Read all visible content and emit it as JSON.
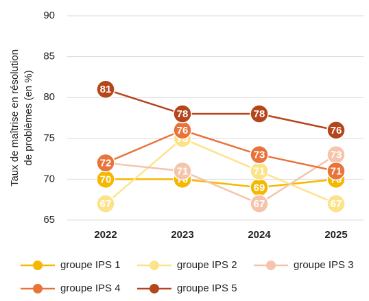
{
  "chart_data": {
    "type": "line",
    "ylabel": [
      "Taux de maîtrise en résolution",
      "de problèmes (en %)"
    ],
    "categories": [
      "2022",
      "2023",
      "2024",
      "2025"
    ],
    "series": [
      {
        "name": "groupe IPS 1",
        "color": "#f5b800",
        "values": [
          70,
          70,
          69,
          70
        ]
      },
      {
        "name": "groupe IPS 2",
        "color": "#fce38a",
        "values": [
          67,
          75,
          71,
          67
        ]
      },
      {
        "name": "groupe IPS 3",
        "color": "#f5c4aa",
        "values": [
          72,
          71,
          67,
          73
        ]
      },
      {
        "name": "groupe IPS 4",
        "color": "#e8743b",
        "values": [
          72,
          76,
          73,
          71
        ]
      },
      {
        "name": "groupe IPS 5",
        "color": "#b5451b",
        "values": [
          81,
          78,
          78,
          76
        ]
      }
    ],
    "ylim": [
      65,
      90
    ],
    "yticks": [
      65,
      70,
      75,
      80,
      85,
      90
    ],
    "grid": true,
    "legend": "bottom"
  }
}
